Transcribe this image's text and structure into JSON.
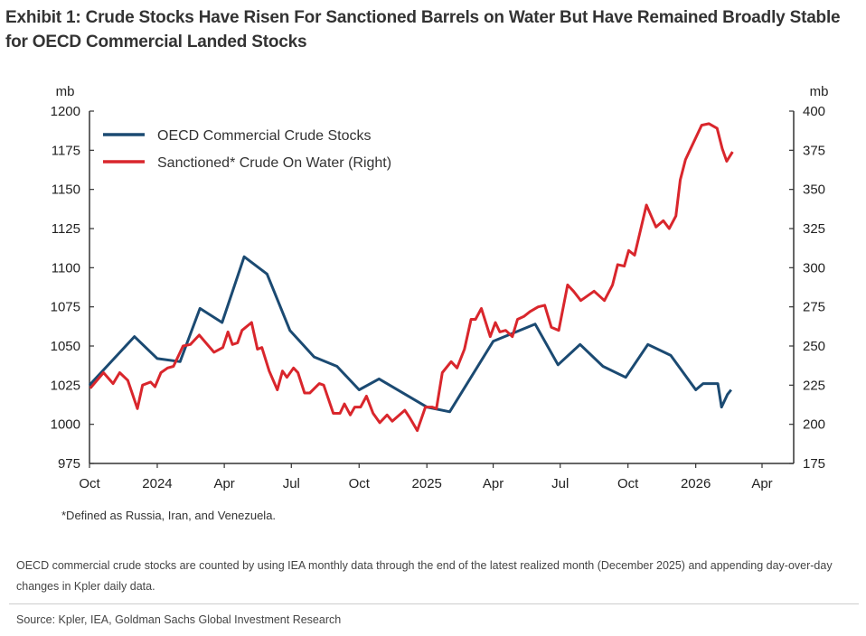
{
  "title": "Exhibit 1: Crude Stocks Have Risen For Sanctioned Barrels on Water But Have Remained Broadly Stable for OECD Commercial Landed Stocks",
  "footnote": "*Defined as Russia, Iran, and Venezuela.",
  "note": "OECD commercial crude stocks are counted by using IEA monthly data through the end of the latest realized month (December 2025) and appending day-over-day changes in Kpler daily data.",
  "source": "Source: Kpler, IEA, Goldman Sachs Global Investment Research",
  "chart_data": {
    "type": "line",
    "title": "Exhibit 1: Crude Stocks Have Risen For Sanctioned Barrels on Water But Have Remained Broadly Stable for OECD Commercial Landed Stocks",
    "ylabel": "mb",
    "y2label": "mb",
    "xlim": [
      "2023-10-01",
      "2026-04-01"
    ],
    "ylim": [
      975,
      1200
    ],
    "y2lim": [
      175,
      400
    ],
    "yticks": [
      975,
      1000,
      1025,
      1050,
      1075,
      1100,
      1125,
      1150,
      1175,
      1200
    ],
    "y2ticks": [
      175,
      200,
      225,
      250,
      275,
      300,
      325,
      350,
      375,
      400
    ],
    "xticks": [
      {
        "date": "2023-10-01",
        "label": "Oct"
      },
      {
        "date": "2024-01-01",
        "label": "2024"
      },
      {
        "date": "2024-04-01",
        "label": "Apr"
      },
      {
        "date": "2024-07-01",
        "label": "Jul"
      },
      {
        "date": "2024-10-01",
        "label": "Oct"
      },
      {
        "date": "2025-01-01",
        "label": "2025"
      },
      {
        "date": "2025-04-01",
        "label": "Apr"
      },
      {
        "date": "2025-07-01",
        "label": "Jul"
      },
      {
        "date": "2025-10-01",
        "label": "Oct"
      },
      {
        "date": "2026-01-01",
        "label": "2026"
      },
      {
        "date": "2026-04-01",
        "label": "Apr"
      }
    ],
    "grid": false,
    "legend_position": "top-left",
    "series": [
      {
        "name": "OECD Commercial Crude Stocks",
        "axis": "left",
        "color": "#1b4a72",
        "points": [
          [
            "2023-10-01",
            1025
          ],
          [
            "2023-12-01",
            1056
          ],
          [
            "2024-01-01",
            1042
          ],
          [
            "2024-02-01",
            1040
          ],
          [
            "2024-02-28",
            1074
          ],
          [
            "2024-03-29",
            1065
          ],
          [
            "2024-04-28",
            1107
          ],
          [
            "2024-05-29",
            1096
          ],
          [
            "2024-06-29",
            1060
          ],
          [
            "2024-08-01",
            1043
          ],
          [
            "2024-09-01",
            1037
          ],
          [
            "2024-10-01",
            1022
          ],
          [
            "2024-10-28",
            1029
          ],
          [
            "2025-01-01",
            1011
          ],
          [
            "2025-02-01",
            1008
          ],
          [
            "2025-04-01",
            1053
          ],
          [
            "2025-05-28",
            1064
          ],
          [
            "2025-06-28",
            1038
          ],
          [
            "2025-07-28",
            1051
          ],
          [
            "2025-08-28",
            1037
          ],
          [
            "2025-09-28",
            1030
          ],
          [
            "2025-10-28",
            1051
          ],
          [
            "2025-11-28",
            1044
          ],
          [
            "2026-01-01",
            1022
          ],
          [
            "2026-01-11",
            1026
          ],
          [
            "2026-01-21",
            1026
          ],
          [
            "2026-01-31",
            1026
          ],
          [
            "2026-02-05",
            1011
          ],
          [
            "2026-02-13",
            1019
          ],
          [
            "2026-02-18",
            1022
          ]
        ]
      },
      {
        "name": "Sanctioned* Crude On Water (Right)",
        "axis": "right",
        "color": "#d9262c",
        "points": [
          [
            "2023-10-02",
            223
          ],
          [
            "2023-10-20",
            233
          ],
          [
            "2023-11-02",
            226
          ],
          [
            "2023-11-11",
            233
          ],
          [
            "2023-11-22",
            228
          ],
          [
            "2023-12-05",
            210
          ],
          [
            "2023-12-12",
            225
          ],
          [
            "2023-12-23",
            227
          ],
          [
            "2023-12-29",
            224
          ],
          [
            "2024-01-06",
            233
          ],
          [
            "2024-01-15",
            236
          ],
          [
            "2024-01-23",
            237
          ],
          [
            "2024-02-05",
            250
          ],
          [
            "2024-02-15",
            251
          ],
          [
            "2024-02-27",
            257
          ],
          [
            "2024-03-18",
            246
          ],
          [
            "2024-03-30",
            249
          ],
          [
            "2024-04-06",
            259
          ],
          [
            "2024-04-12",
            251
          ],
          [
            "2024-04-19",
            252
          ],
          [
            "2024-04-25",
            260
          ],
          [
            "2024-05-08",
            265
          ],
          [
            "2024-05-16",
            248
          ],
          [
            "2024-05-22",
            249
          ],
          [
            "2024-06-01",
            234
          ],
          [
            "2024-06-12",
            222
          ],
          [
            "2024-06-19",
            234
          ],
          [
            "2024-06-25",
            230
          ],
          [
            "2024-07-04",
            236
          ],
          [
            "2024-07-10",
            233
          ],
          [
            "2024-07-19",
            220
          ],
          [
            "2024-07-26",
            220
          ],
          [
            "2024-08-08",
            226
          ],
          [
            "2024-08-14",
            225
          ],
          [
            "2024-08-27",
            207
          ],
          [
            "2024-09-05",
            207
          ],
          [
            "2024-09-11",
            213
          ],
          [
            "2024-09-19",
            206
          ],
          [
            "2024-09-25",
            211
          ],
          [
            "2024-10-03",
            211
          ],
          [
            "2024-10-11",
            218
          ],
          [
            "2024-10-20",
            207
          ],
          [
            "2024-10-29",
            201
          ],
          [
            "2024-11-08",
            206
          ],
          [
            "2024-11-15",
            202
          ],
          [
            "2024-12-02",
            209
          ],
          [
            "2024-12-09",
            204
          ],
          [
            "2024-12-19",
            196
          ],
          [
            "2024-12-30",
            211
          ],
          [
            "2025-01-08",
            211
          ],
          [
            "2025-01-14",
            210
          ],
          [
            "2025-01-22",
            233
          ],
          [
            "2025-02-03",
            240
          ],
          [
            "2025-02-11",
            236
          ],
          [
            "2025-02-21",
            248
          ],
          [
            "2025-03-02",
            267
          ],
          [
            "2025-03-08",
            267
          ],
          [
            "2025-03-16",
            274
          ],
          [
            "2025-03-28",
            256
          ],
          [
            "2025-04-04",
            265
          ],
          [
            "2025-04-10",
            259
          ],
          [
            "2025-04-18",
            260
          ],
          [
            "2025-04-27",
            256
          ],
          [
            "2025-05-04",
            267
          ],
          [
            "2025-05-13",
            269
          ],
          [
            "2025-05-21",
            272
          ],
          [
            "2025-06-01",
            275
          ],
          [
            "2025-06-10",
            276
          ],
          [
            "2025-06-19",
            262
          ],
          [
            "2025-06-29",
            260
          ],
          [
            "2025-07-11",
            289
          ],
          [
            "2025-07-19",
            285
          ],
          [
            "2025-07-29",
            279
          ],
          [
            "2025-08-16",
            285
          ],
          [
            "2025-08-30",
            279
          ],
          [
            "2025-09-10",
            289
          ],
          [
            "2025-09-17",
            302
          ],
          [
            "2025-09-26",
            301
          ],
          [
            "2025-10-02",
            311
          ],
          [
            "2025-10-10",
            308
          ],
          [
            "2025-10-26",
            340
          ],
          [
            "2025-11-08",
            326
          ],
          [
            "2025-11-18",
            330
          ],
          [
            "2025-11-26",
            325
          ],
          [
            "2025-12-05",
            333
          ],
          [
            "2025-12-11",
            356
          ],
          [
            "2025-12-18",
            369
          ],
          [
            "2025-12-29",
            380
          ],
          [
            "2026-01-09",
            391
          ],
          [
            "2026-01-19",
            392
          ],
          [
            "2026-01-30",
            389
          ],
          [
            "2026-02-06",
            376
          ],
          [
            "2026-02-12",
            368
          ],
          [
            "2026-02-20",
            374
          ]
        ]
      }
    ]
  }
}
